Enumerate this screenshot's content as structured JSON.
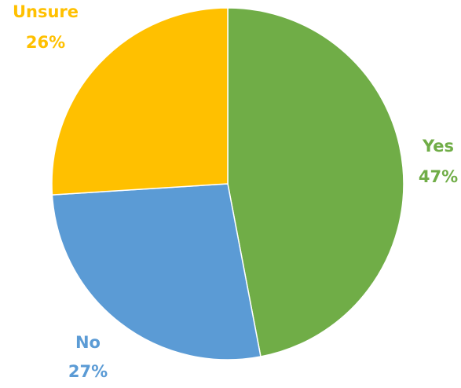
{
  "chart_data": {
    "type": "pie",
    "title": "",
    "slices": [
      {
        "label": "Yes",
        "value": 47,
        "value_label": "47%",
        "color": "#70AD47"
      },
      {
        "label": "No",
        "value": 27,
        "value_label": "27%",
        "color": "#5B9BD5"
      },
      {
        "label": "Unsure",
        "value": 26,
        "value_label": "26%",
        "color": "#FFC000"
      }
    ],
    "start": "12 o'clock",
    "direction": "clockwise",
    "legend": "none",
    "data_labels": "outside, category name and percentage"
  }
}
